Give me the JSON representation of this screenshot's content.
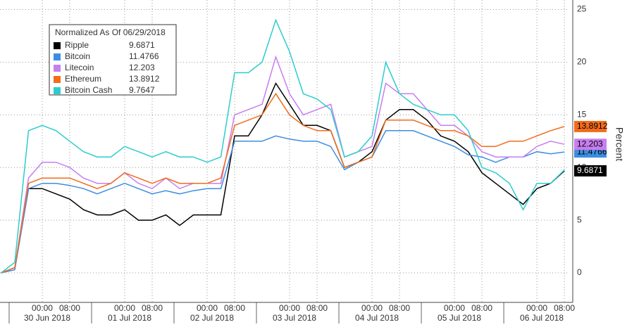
{
  "chart_data": {
    "type": "line",
    "legend_title": "Normalized As Of 06/29/2018",
    "legend": "upper left",
    "ylabel": "Percent",
    "grid": true,
    "xlim": [
      -12.3,
      152.8
    ],
    "ylim": [
      -2.8,
      25.9
    ],
    "yticks": [
      0,
      5,
      10,
      15,
      20,
      25
    ],
    "xticks": [
      {
        "value": 0,
        "label": "00:00"
      },
      {
        "value": 8,
        "label": "08:00"
      },
      {
        "value": 24,
        "label": "00:00"
      },
      {
        "value": 32,
        "label": "08:00"
      },
      {
        "value": 48,
        "label": "00:00"
      },
      {
        "value": 56,
        "label": "08:00"
      },
      {
        "value": 72,
        "label": "00:00"
      },
      {
        "value": 80,
        "label": "08:00"
      },
      {
        "value": 96,
        "label": "00:00"
      },
      {
        "value": 104,
        "label": "08:00"
      },
      {
        "value": 120,
        "label": "00:00"
      },
      {
        "value": 128,
        "label": "08:00"
      },
      {
        "value": 144,
        "label": "00:00"
      },
      {
        "value": 152,
        "label": "08:00"
      }
    ],
    "day_labels": [
      {
        "value": 0,
        "label": "30 Jun 2018"
      },
      {
        "value": 24,
        "label": "01 Jul 2018"
      },
      {
        "value": 48,
        "label": "02 Jul 2018"
      },
      {
        "value": 72,
        "label": "03 Jul 2018"
      },
      {
        "value": 96,
        "label": "04 Jul 2018"
      },
      {
        "value": 120,
        "label": "05 Jul 2018"
      },
      {
        "value": 144,
        "label": "06 Jul 2018"
      }
    ],
    "x": [
      -12,
      -8,
      -4,
      0,
      4,
      8,
      12,
      16,
      20,
      24,
      28,
      32,
      36,
      40,
      44,
      48,
      52,
      56,
      60,
      64,
      68,
      72,
      76,
      80,
      84,
      88,
      92,
      96,
      100,
      104,
      108,
      112,
      116,
      120,
      124,
      128,
      132,
      136,
      140,
      144,
      148,
      152
    ],
    "series": [
      {
        "name": "Ripple",
        "color": "#000000",
        "values": [
          0,
          0.5,
          8,
          8,
          7.5,
          7,
          6,
          5.5,
          5.5,
          6,
          5,
          5,
          5.5,
          4.5,
          5.5,
          5.5,
          5.5,
          13,
          13,
          15,
          18,
          16,
          14,
          14,
          13.5,
          10,
          10.5,
          11.5,
          14.5,
          15.5,
          15.5,
          14.5,
          13,
          12.5,
          11.5,
          9.5,
          8.5,
          7.5,
          6.5,
          8,
          8.5,
          9.6871
        ]
      },
      {
        "name": "Bitcoin",
        "color": "#3c8ee0",
        "values": [
          0,
          0.3,
          8,
          8.5,
          8.5,
          8.3,
          8,
          7.5,
          8,
          8.5,
          8,
          7.5,
          7.8,
          7.5,
          7.8,
          8,
          8,
          12.5,
          12.5,
          12.5,
          13,
          12.7,
          12.5,
          12.5,
          12,
          9.8,
          10.5,
          11,
          13.5,
          13.5,
          13.5,
          13,
          12.5,
          12,
          11.2,
          11,
          10.5,
          11,
          11,
          11.5,
          11.3,
          11.4766
        ]
      },
      {
        "name": "Litecoin",
        "color": "#c77ef0",
        "values": [
          0,
          0.5,
          9,
          10.5,
          10.5,
          10,
          9,
          8.5,
          8.5,
          9.5,
          8.5,
          8,
          9,
          8,
          8.5,
          8.5,
          8.5,
          15,
          15.5,
          16,
          20.5,
          17,
          15,
          15.5,
          16,
          11,
          11.5,
          12,
          18,
          17,
          17,
          15.5,
          14,
          14,
          13,
          11.5,
          11,
          11,
          11,
          12,
          12.5,
          12.203
        ]
      },
      {
        "name": "Ethereum",
        "color": "#f26c1b",
        "values": [
          0,
          0.5,
          8.5,
          9,
          9,
          9,
          8.5,
          8,
          8.5,
          9.5,
          9,
          8.5,
          9,
          8.5,
          8.5,
          8.5,
          9,
          14,
          14.5,
          15,
          17,
          15,
          14,
          13.5,
          13.5,
          10,
          10.5,
          11,
          14.5,
          14.5,
          14.5,
          14,
          13.5,
          13.5,
          13,
          12,
          12,
          12.5,
          12.5,
          13,
          13.5,
          13.8912
        ]
      },
      {
        "name": "Bitcoin Cash",
        "color": "#2dcccc",
        "values": [
          0,
          1,
          13.5,
          14,
          13.5,
          12.5,
          11.5,
          11,
          11,
          12,
          11.5,
          11,
          11.5,
          11,
          11,
          10.5,
          11,
          19,
          19,
          20,
          24,
          21,
          17,
          16.5,
          15.5,
          11,
          11.5,
          13,
          20,
          17,
          16,
          15.5,
          15,
          15,
          13.5,
          10,
          9.5,
          8.5,
          6,
          8.5,
          8.5,
          9.7647
        ]
      }
    ]
  }
}
